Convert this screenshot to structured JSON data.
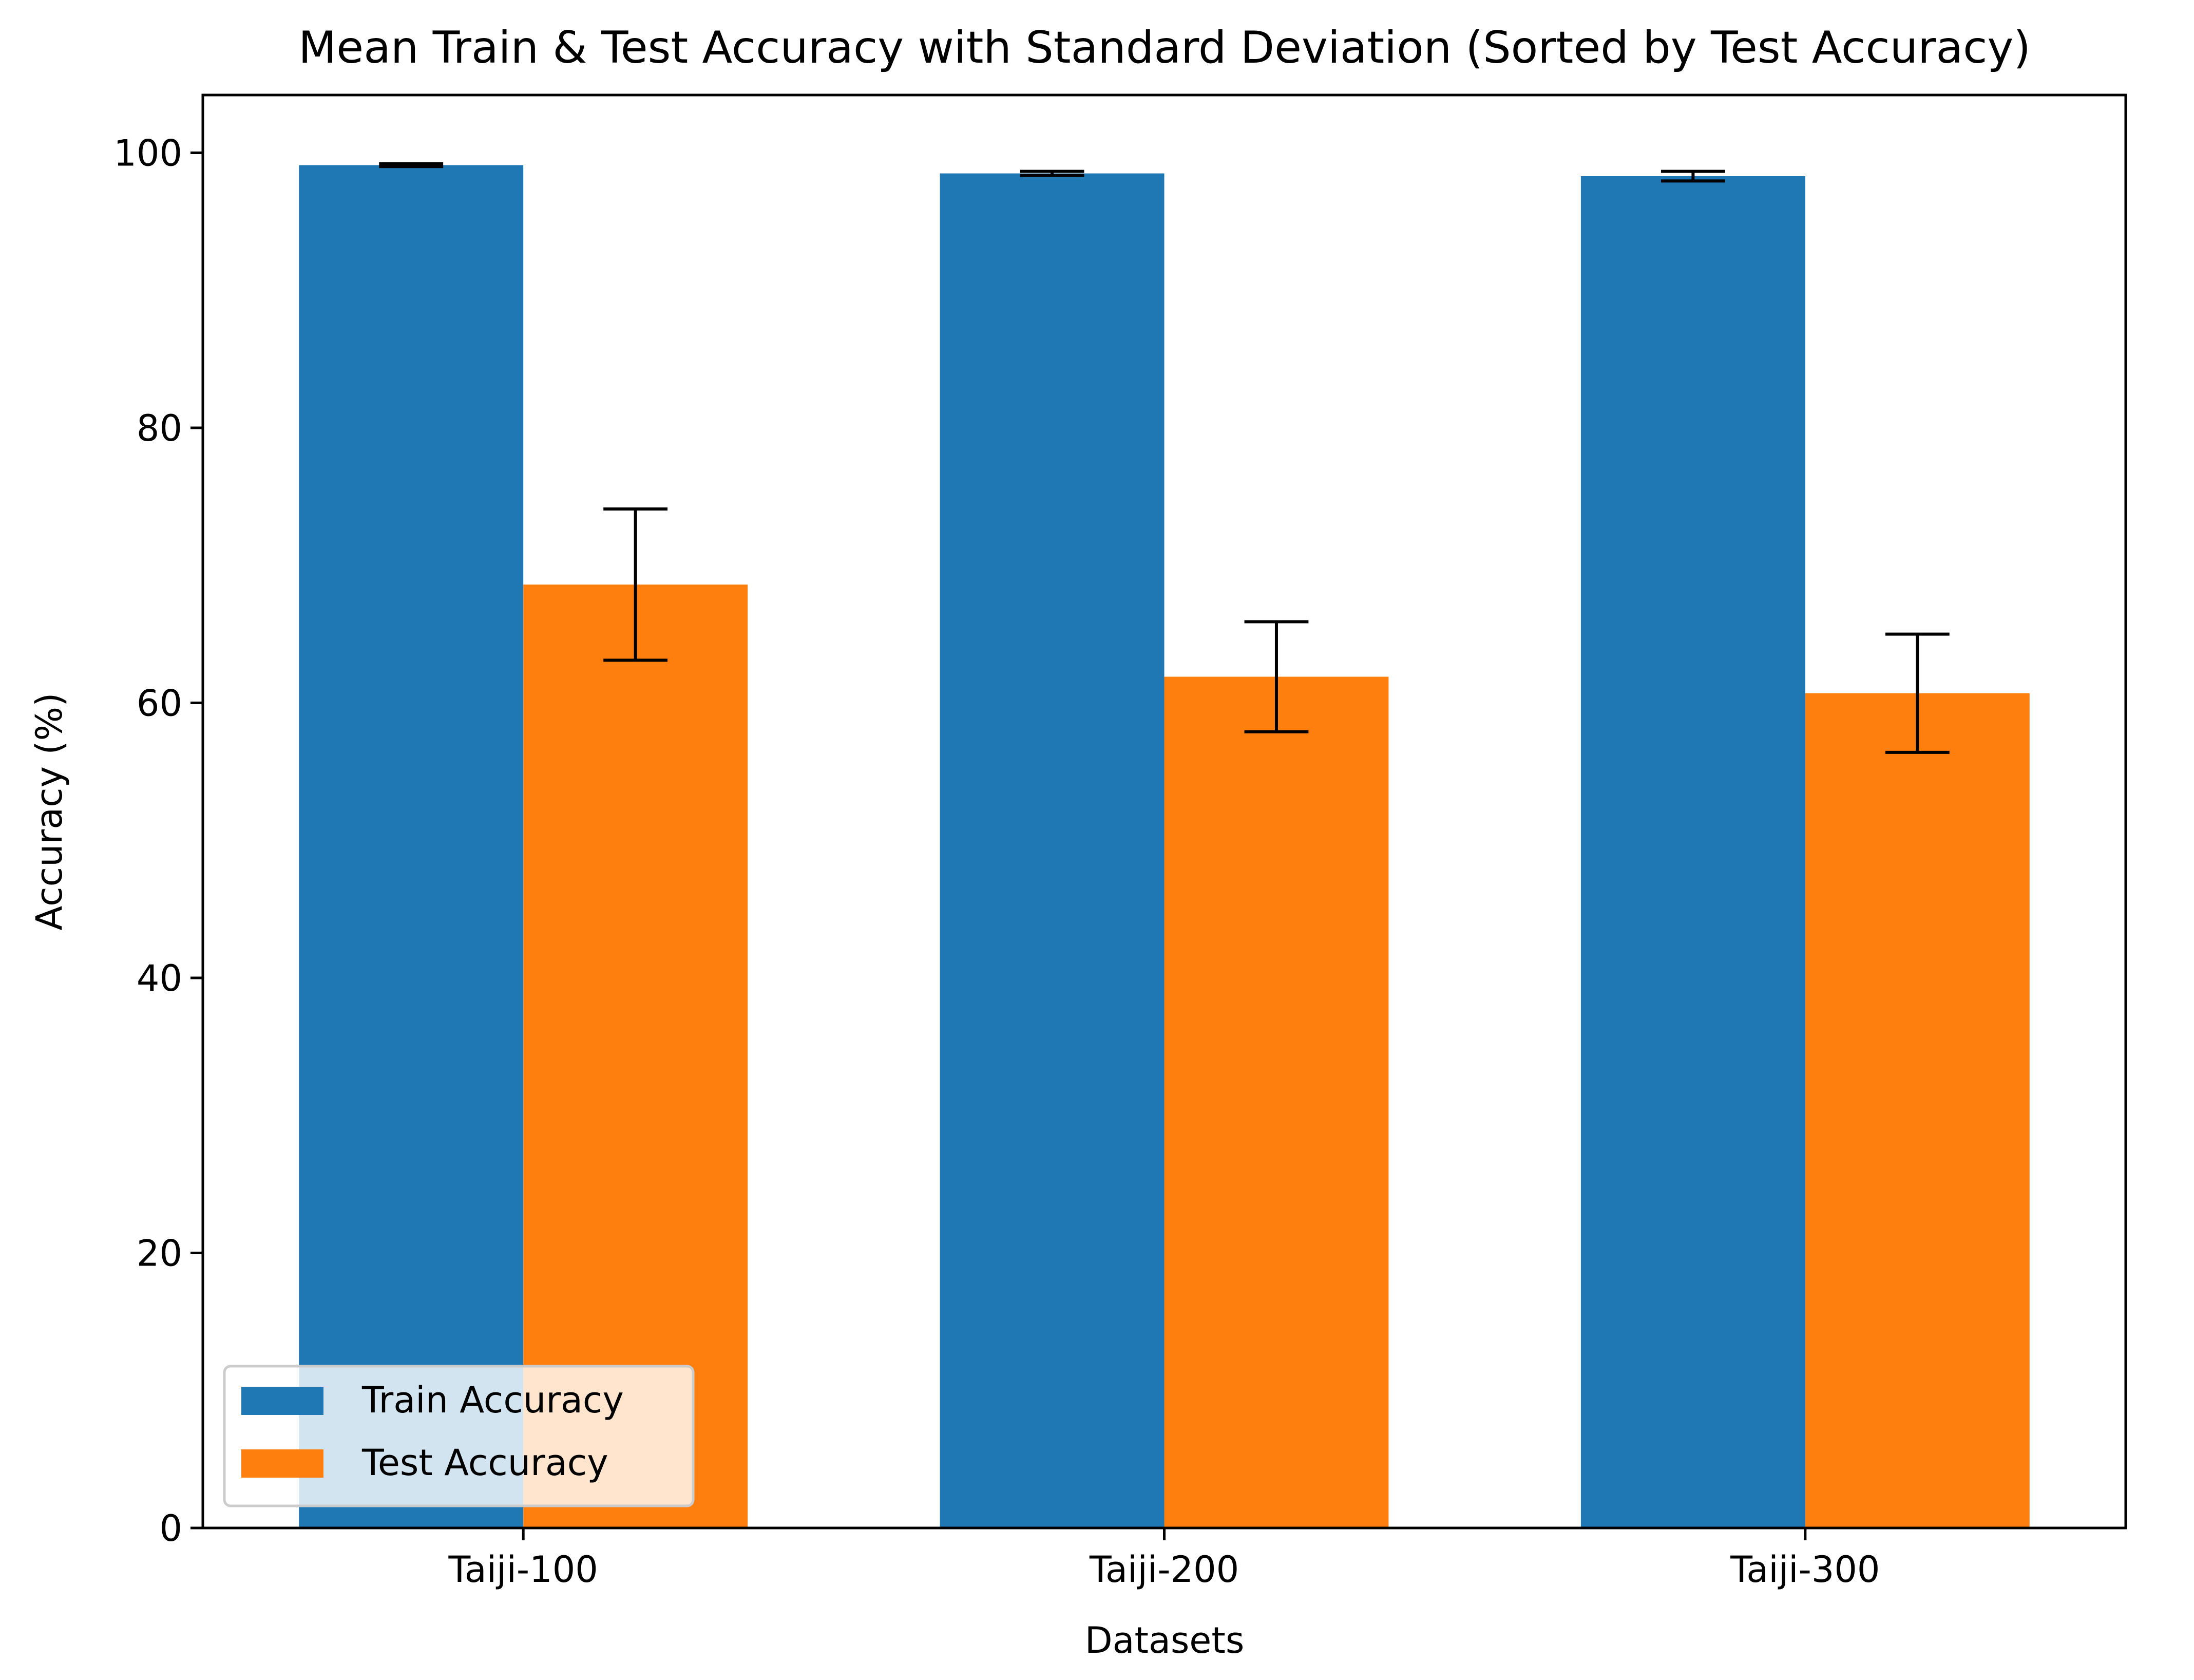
{
  "chart_data": {
    "type": "bar",
    "title": "Mean Train & Test Accuracy with Standard Deviation (Sorted by Test Accuracy)",
    "xlabel": "Datasets",
    "ylabel": "Accuracy (%)",
    "ylim": [
      0,
      104.2
    ],
    "yticks": [
      0,
      20,
      40,
      60,
      80,
      100
    ],
    "categories": [
      "Taiji-100",
      "Taiji-200",
      "Taiji-300"
    ],
    "series": [
      {
        "name": "Train Accuracy",
        "color": "#1f77b4",
        "values": [
          99.1,
          98.5,
          98.3
        ],
        "errors": [
          0.1,
          0.15,
          0.35
        ]
      },
      {
        "name": "Test Accuracy",
        "color": "#ff7f0e",
        "values": [
          68.6,
          61.9,
          60.7
        ],
        "errors": [
          5.5,
          4.0,
          4.3
        ]
      }
    ],
    "grid": false,
    "legend_position": "lower-left",
    "error_bar_color": "#000000"
  }
}
